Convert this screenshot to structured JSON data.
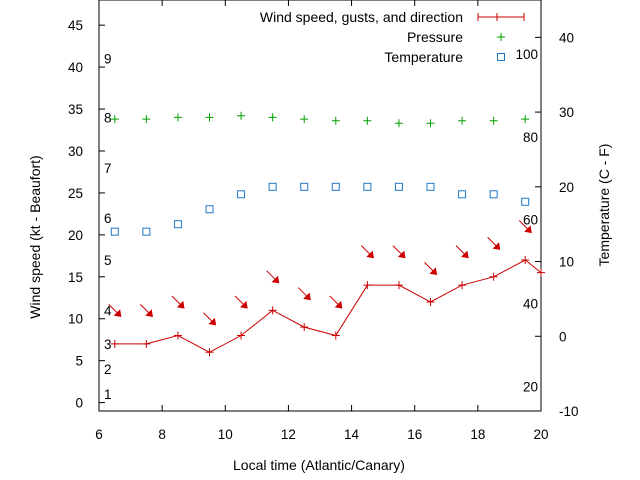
{
  "chart_data": {
    "type": "line",
    "xlabel": "Local time (Atlantic/Canary)",
    "ylabel": "Wind speed (kt - Beaufort)",
    "y2label": "Temperature (C - F)",
    "xlim": [
      6,
      20
    ],
    "ylim": [
      -1,
      48
    ],
    "y2lim": [
      -10,
      45
    ],
    "x_ticks": [
      6,
      8,
      10,
      12,
      14,
      16,
      18,
      20
    ],
    "y_ticks": [
      0,
      5,
      10,
      15,
      20,
      25,
      30,
      35,
      40,
      45
    ],
    "y2_ticks": [
      -10,
      0,
      10,
      20,
      30,
      40
    ],
    "beaufort_labels": [
      {
        "label": "1",
        "kt": 1
      },
      {
        "label": "2",
        "kt": 4
      },
      {
        "label": "3",
        "kt": 7
      },
      {
        "label": "4",
        "kt": 11
      },
      {
        "label": "5",
        "kt": 17
      },
      {
        "label": "6",
        "kt": 22
      },
      {
        "label": "7",
        "kt": 28
      },
      {
        "label": "8",
        "kt": 34
      },
      {
        "label": "9",
        "kt": 41
      }
    ],
    "fahrenheit_labels": [
      {
        "label": "20",
        "c": -6.7
      },
      {
        "label": "40",
        "c": 4.4
      },
      {
        "label": "60",
        "c": 15.6
      },
      {
        "label": "80",
        "c": 26.7
      },
      {
        "label": "100",
        "c": 37.8
      }
    ],
    "legend_position": "top-right",
    "series": [
      {
        "name": "Wind speed, gusts, and direction",
        "color": "#cc0000",
        "style": "line-with-plus",
        "x": [
          6.5,
          7.5,
          8.5,
          9.5,
          10.5,
          11.5,
          12.5,
          13.5,
          14.5,
          15.5,
          16.5,
          17.5,
          18.5,
          19.5,
          20.0
        ],
        "y": [
          7,
          7,
          8,
          6,
          8,
          11,
          9,
          8,
          14,
          14,
          12,
          14,
          15,
          17,
          15.5
        ],
        "directions": [
          {
            "x": 6.5,
            "y": 11,
            "angle": 55
          },
          {
            "x": 7.5,
            "y": 11,
            "angle": 55
          },
          {
            "x": 8.5,
            "y": 12,
            "angle": 55
          },
          {
            "x": 9.5,
            "y": 10,
            "angle": 55
          },
          {
            "x": 10.5,
            "y": 12,
            "angle": 235
          },
          {
            "x": 11.5,
            "y": 15,
            "angle": 235
          },
          {
            "x": 12.5,
            "y": 13,
            "angle": 235
          },
          {
            "x": 13.5,
            "y": 12,
            "angle": 235
          },
          {
            "x": 14.5,
            "y": 18,
            "angle": 235
          },
          {
            "x": 15.5,
            "y": 18,
            "angle": 235
          },
          {
            "x": 16.5,
            "y": 16,
            "angle": 235
          },
          {
            "x": 17.5,
            "y": 18,
            "angle": 235
          },
          {
            "x": 18.5,
            "y": 19,
            "angle": 235
          },
          {
            "x": 19.5,
            "y": 21,
            "angle": 235
          }
        ]
      },
      {
        "name": "Pressure",
        "color": "#00a000",
        "style": "plus-points",
        "x": [
          6.5,
          7.5,
          8.5,
          9.5,
          10.5,
          11.5,
          12.5,
          13.5,
          14.5,
          15.5,
          16.5,
          17.5,
          18.5,
          19.5
        ],
        "y": [
          33.8,
          33.8,
          34.0,
          34.0,
          34.2,
          34.0,
          33.8,
          33.6,
          33.6,
          33.3,
          33.3,
          33.6,
          33.6,
          33.8
        ]
      },
      {
        "name": "Temperature",
        "color": "#1e78c8",
        "style": "square-points",
        "axis": "right",
        "x": [
          6.5,
          7.5,
          8.5,
          9.5,
          10.5,
          11.5,
          12.5,
          13.5,
          14.5,
          15.5,
          16.5,
          17.5,
          18.5,
          19.5
        ],
        "y": [
          14,
          14,
          15,
          17,
          19,
          20,
          20,
          20,
          20,
          20,
          20,
          19,
          19,
          18
        ]
      }
    ]
  }
}
